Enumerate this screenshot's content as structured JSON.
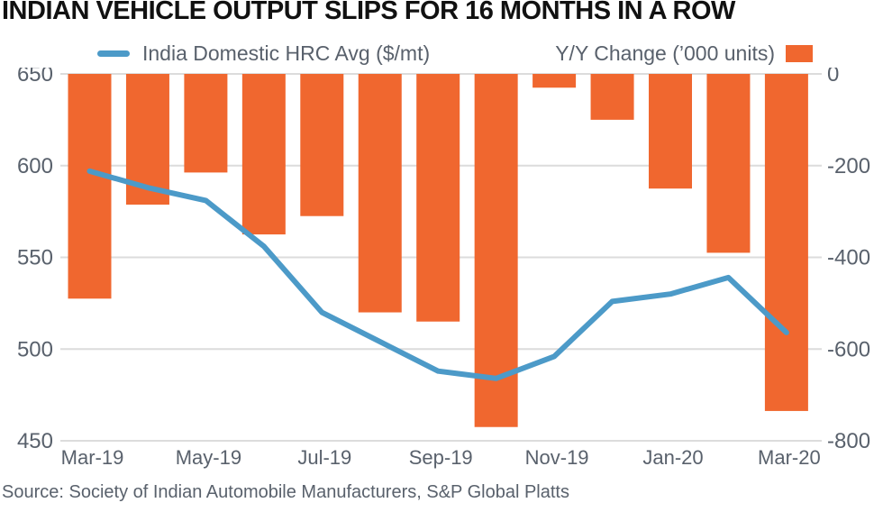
{
  "title": "INDIAN VEHICLE OUTPUT SLIPS FOR 16 MONTHS IN A ROW",
  "source": "Source: Society of Indian Automobile Manufacturers, S&P Global Platts",
  "legend": {
    "line_label": "India Domestic HRC Avg ($/mt)",
    "bar_label": "Y/Y Change (’000 units)"
  },
  "colors": {
    "bar": "#F0672F",
    "line": "#4C9AC8",
    "grid": "#DCDCDC",
    "text": "#59616C",
    "title": "#111111"
  },
  "chart_data": {
    "type": "bar",
    "subtype": "combo-bar-line-dual-axis",
    "title": "INDIAN VEHICLE OUTPUT SLIPS FOR 16 MONTHS IN A ROW",
    "categories": [
      "Mar-19",
      "Apr-19",
      "May-19",
      "Jun-19",
      "Jul-19",
      "Aug-19",
      "Sep-19",
      "Oct-19",
      "Nov-19",
      "Dec-19",
      "Jan-20",
      "Feb-20",
      "Mar-20"
    ],
    "x_tick_labels": [
      "Mar-19",
      "May-19",
      "Jul-19",
      "Sep-19",
      "Nov-19",
      "Jan-20",
      "Mar-20"
    ],
    "series": [
      {
        "name": "India Domestic HRC Avg ($/mt)",
        "type": "line",
        "axis": "left",
        "color": "#4C9AC8",
        "values": [
          597,
          588,
          581,
          556,
          520,
          504,
          488,
          484,
          496,
          526,
          530,
          539,
          509
        ]
      },
      {
        "name": "Y/Y Change (’000 units)",
        "type": "bar",
        "axis": "right",
        "color": "#F0672F",
        "values": [
          -490,
          -285,
          -215,
          -350,
          -310,
          -520,
          -540,
          -770,
          -30,
          -100,
          -250,
          -390,
          -735
        ]
      }
    ],
    "left_axis": {
      "label": "$/mt",
      "min": 450,
      "max": 650,
      "ticks": [
        650,
        600,
        550,
        500,
        450
      ]
    },
    "right_axis": {
      "label": "'000 units",
      "min": -800,
      "max": 0,
      "ticks": [
        0,
        -200,
        -400,
        -600,
        -800
      ]
    },
    "grid": true,
    "legend_position": "top",
    "xlabel": "",
    "ylabel": ""
  }
}
